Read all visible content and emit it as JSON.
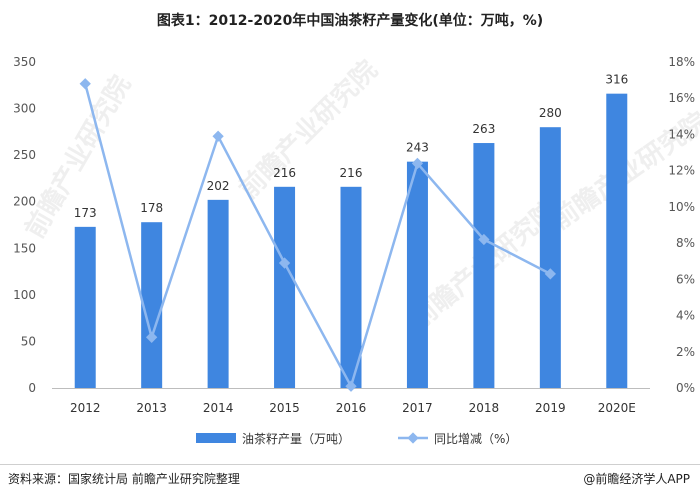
{
  "chart_data": {
    "type": "bar+line",
    "title": "图表1：2012-2020年中国油茶籽产量变化(单位：万吨，%)",
    "categories": [
      "2012",
      "2013",
      "2014",
      "2015",
      "2016",
      "2017",
      "2018",
      "2019",
      "2020E"
    ],
    "series": [
      {
        "name": "油茶籽产量（万吨）",
        "type": "bar",
        "axis": "left",
        "color": "#3f86e0",
        "values": [
          173,
          178,
          202,
          216,
          216,
          243,
          263,
          280,
          316
        ]
      },
      {
        "name": "同比增减（%）",
        "type": "line",
        "axis": "right",
        "color": "#8db7ef",
        "values": [
          16.8,
          2.8,
          13.9,
          6.9,
          0.1,
          12.4,
          8.2,
          6.3,
          null
        ]
      }
    ],
    "y_left": {
      "min": 0,
      "max": 350,
      "ticks": [
        "0",
        "50",
        "100",
        "150",
        "200",
        "250",
        "300",
        "350"
      ]
    },
    "y_right": {
      "min": 0,
      "max": 18,
      "ticks": [
        "0%",
        "2%",
        "4%",
        "6%",
        "8%",
        "10%",
        "12%",
        "14%",
        "16%",
        "18%"
      ]
    },
    "grid": false,
    "legend_position": "bottom"
  },
  "footer": {
    "source": "资料来源：国家统计局 前瞻产业研究院整理",
    "credit": "@前瞻经济学人APP"
  },
  "watermark": "前瞻产业研究院"
}
